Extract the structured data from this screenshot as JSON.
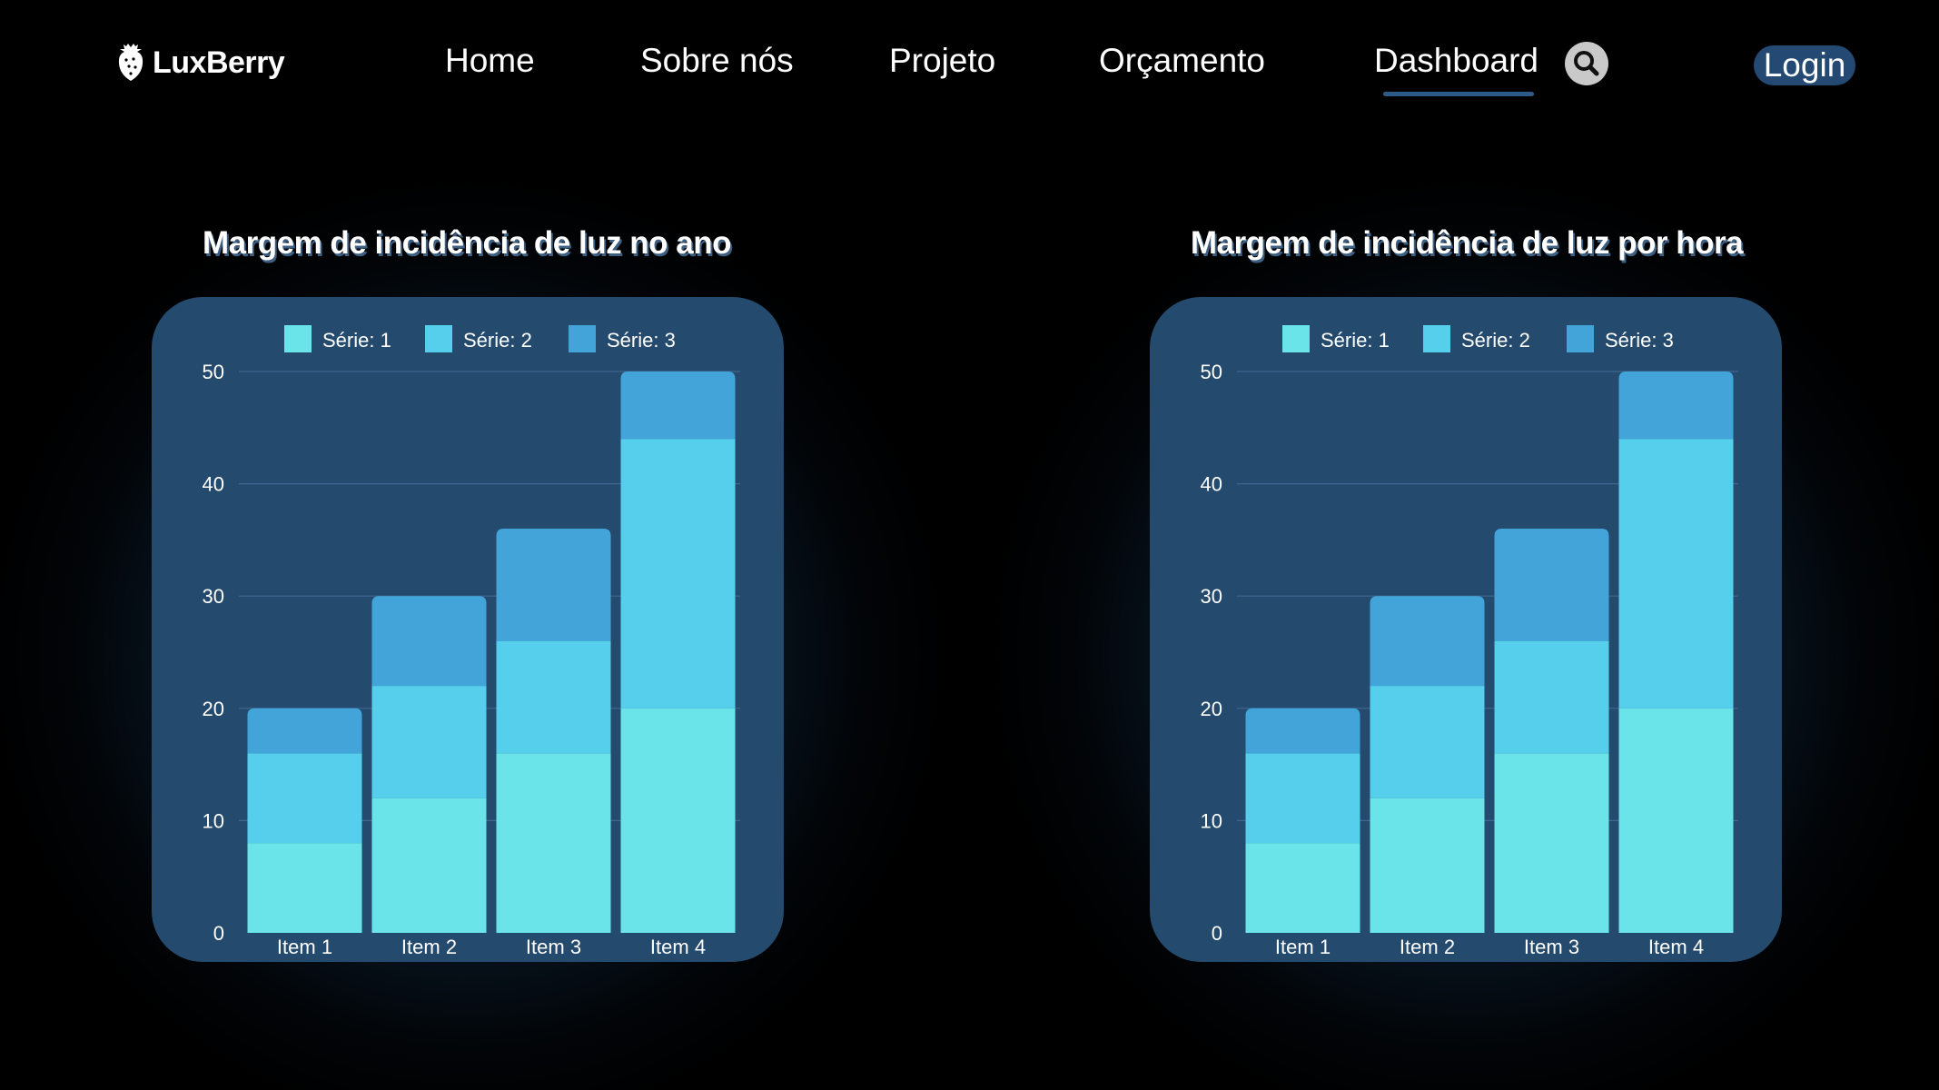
{
  "brand": {
    "name": "LuxBerry",
    "icon": "strawberry-logo-icon"
  },
  "nav": {
    "items": [
      {
        "label": "Home"
      },
      {
        "label": "Sobre nós"
      },
      {
        "label": "Projeto"
      },
      {
        "label": "Orçamento"
      },
      {
        "label": "Dashboard",
        "active": true
      }
    ],
    "search_icon": "search-icon",
    "login_label": "Login"
  },
  "colors": {
    "series1": "#6ae4e8",
    "series2": "#55cfec",
    "series3": "#42a4d8",
    "panel": "#244a6e",
    "accent": "#244a73"
  },
  "chart_data": [
    {
      "type": "bar",
      "stacked": true,
      "title": "Margem de incidência de luz no ano",
      "categories": [
        "Item 1",
        "Item 2",
        "Item 3",
        "Item 4"
      ],
      "series": [
        {
          "name": "Série: 1",
          "values": [
            8,
            12,
            16,
            20
          ]
        },
        {
          "name": "Série: 2",
          "values": [
            8,
            10,
            10,
            24
          ]
        },
        {
          "name": "Série: 3",
          "values": [
            4,
            8,
            10,
            6
          ]
        }
      ],
      "ylim": [
        0,
        50
      ],
      "yticks": [
        "0",
        "10",
        "20",
        "30",
        "40",
        "50"
      ],
      "grid": true,
      "legend": "top"
    },
    {
      "type": "bar",
      "stacked": true,
      "title": "Margem de incidência de luz  por hora",
      "categories": [
        "Item 1",
        "Item 2",
        "Item 3",
        "Item 4"
      ],
      "series": [
        {
          "name": "Série: 1",
          "values": [
            8,
            12,
            16,
            20
          ]
        },
        {
          "name": "Série: 2",
          "values": [
            8,
            10,
            10,
            24
          ]
        },
        {
          "name": "Série: 3",
          "values": [
            4,
            8,
            10,
            6
          ]
        }
      ],
      "ylim": [
        0,
        50
      ],
      "yticks": [
        "0",
        "10",
        "20",
        "30",
        "40",
        "50"
      ],
      "grid": true,
      "legend": "top"
    }
  ]
}
